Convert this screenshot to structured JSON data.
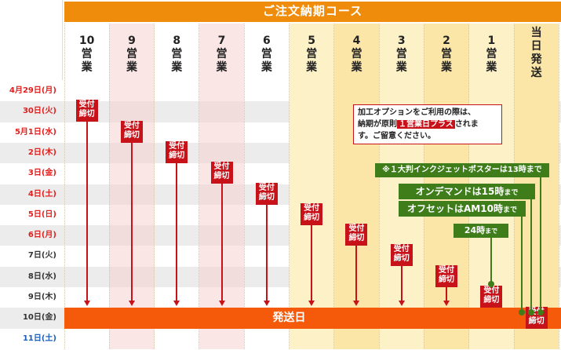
{
  "header": {
    "title": "ご注文納期コース"
  },
  "columns": [
    {
      "num": "10",
      "unit": "営業"
    },
    {
      "num": "9",
      "unit": "営業"
    },
    {
      "num": "8",
      "unit": "営業"
    },
    {
      "num": "7",
      "unit": "営業"
    },
    {
      "num": "6",
      "unit": "営業"
    },
    {
      "num": "5",
      "unit": "営業"
    },
    {
      "num": "4",
      "unit": "営業"
    },
    {
      "num": "3",
      "unit": "営業"
    },
    {
      "num": "2",
      "unit": "営業"
    },
    {
      "num": "1",
      "unit": "営業"
    }
  ],
  "same_day": {
    "line1": "当日",
    "line2": "発送"
  },
  "rows": [
    {
      "label": "4月29日(月)",
      "color": "red"
    },
    {
      "label": "30日(火)",
      "color": "red"
    },
    {
      "label": "5月1日(水)",
      "color": "red"
    },
    {
      "label": "2日(木)",
      "color": "red"
    },
    {
      "label": "3日(金)",
      "color": "red"
    },
    {
      "label": "4日(土)",
      "color": "red"
    },
    {
      "label": "5日(日)",
      "color": "red"
    },
    {
      "label": "6日(月)",
      "color": "red"
    },
    {
      "label": "7日(火)",
      "color": "black"
    },
    {
      "label": "8日(水)",
      "color": "black"
    },
    {
      "label": "9日(木)",
      "color": "black"
    },
    {
      "label": "10日(金)",
      "color": "black"
    },
    {
      "label": "11日(土)",
      "color": "blue"
    }
  ],
  "stamp": {
    "line1": "受付",
    "line2": "締切"
  },
  "ship_label": "発送日",
  "note": {
    "line1": "加工オプションをご利用の際は、",
    "line2a": "納期が原則",
    "highlight": "１営業日プラス",
    "line2b": "されま",
    "line3": "す。ご留意ください。"
  },
  "pills": {
    "large_format": "※１大判インクジェットポスターは13時まで",
    "on_demand_a": "オンデマンドは15時",
    "on_demand_b": "まで",
    "offset_a": "オフセットはAM10時",
    "offset_b": "まで",
    "h24_a": "24時",
    "h24_b": "まで"
  },
  "colors": {
    "accent_orange": "#f08c0c",
    "stamp_red": "#c8121a",
    "ship_orange": "#f55a0b",
    "pill_green": "#3e7d1a",
    "col_yellow": "#fdf0c4",
    "col_pink": "#fbe0e0"
  }
}
